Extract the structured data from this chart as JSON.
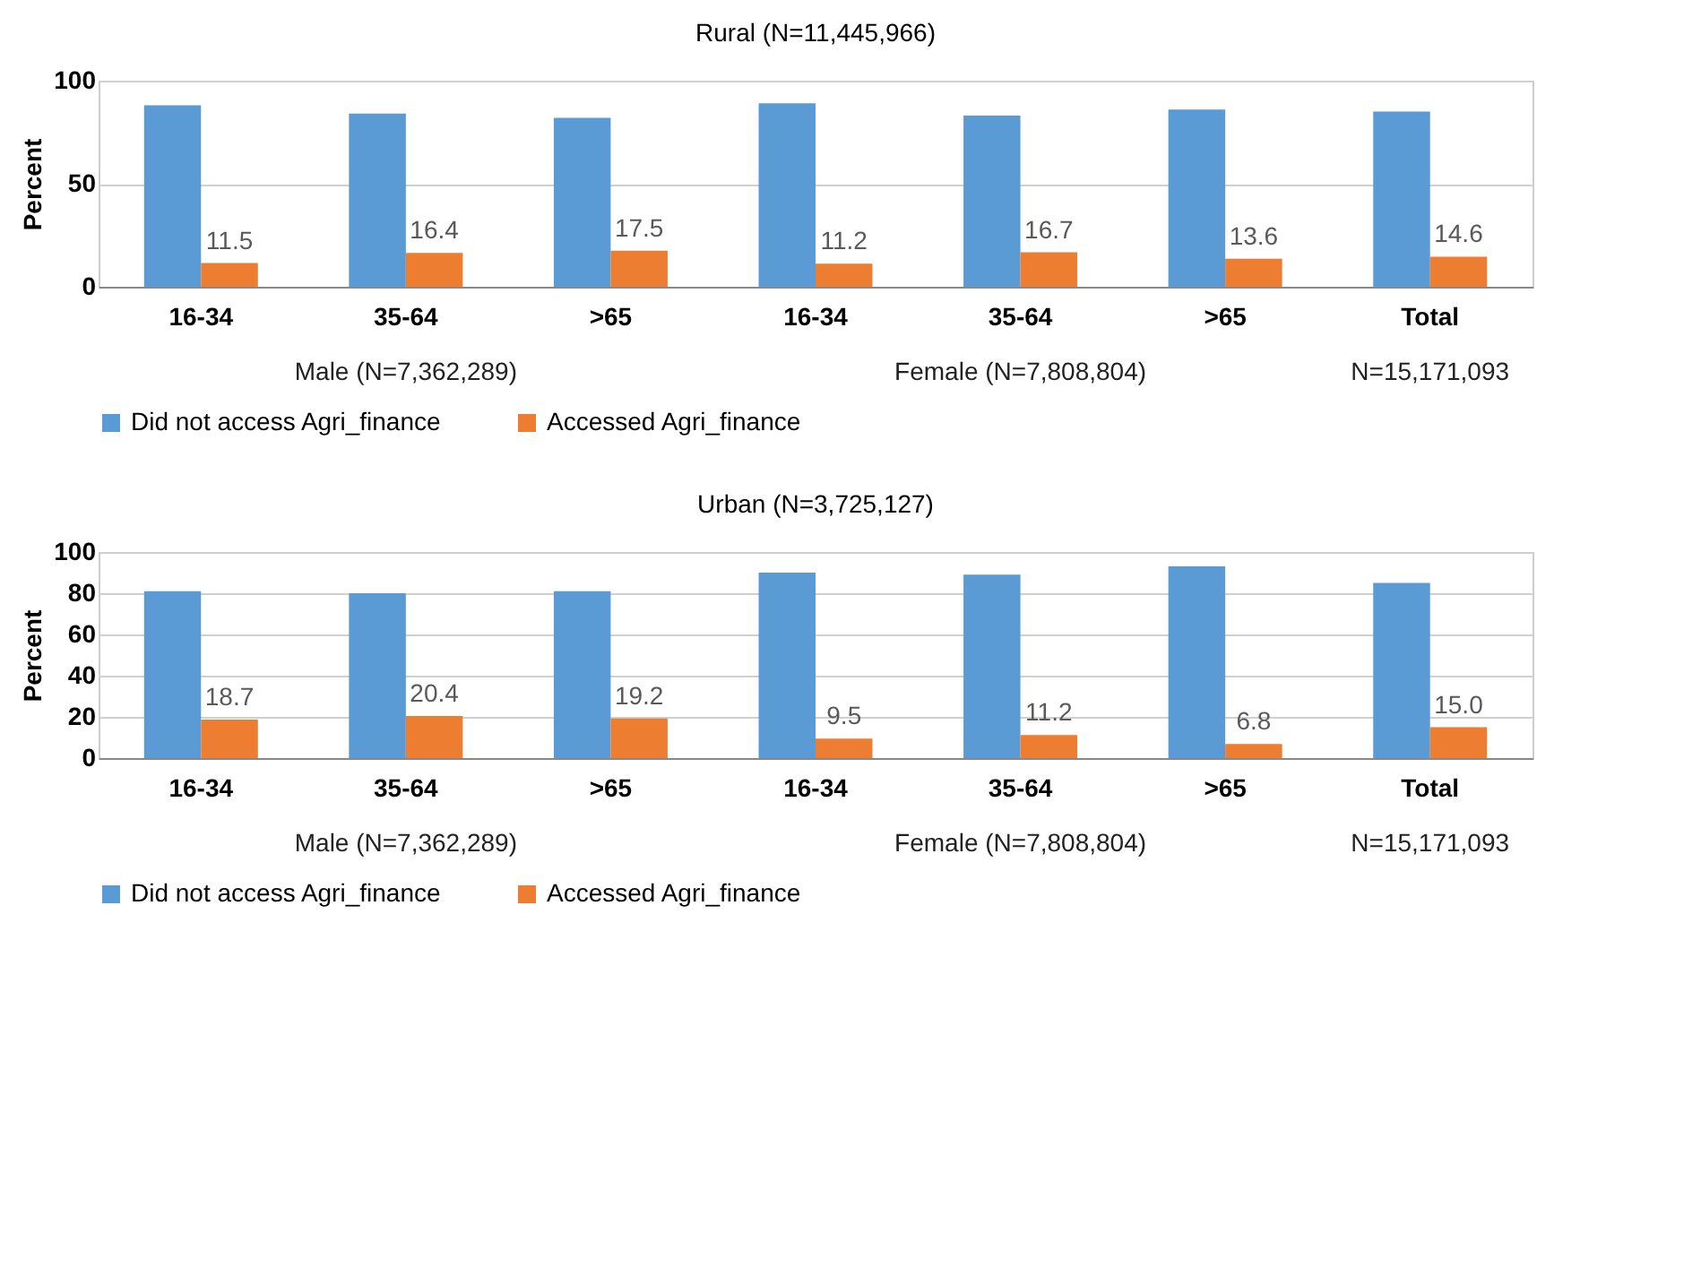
{
  "chart_data": [
    {
      "type": "bar",
      "title": "Rural (N=11,445,966)",
      "ylabel": "Percent",
      "categories": [
        "16-34",
        "35-64",
        ">65",
        "16-34",
        "35-64",
        ">65",
        "Total"
      ],
      "series": [
        {
          "name": "Did not access Agri_finance",
          "color": "#5b9bd5",
          "values": [
            88,
            84,
            82,
            89,
            83,
            86,
            85
          ]
        },
        {
          "name": "Accessed Agri_finance",
          "color": "#ed7d31",
          "values": [
            11.5,
            16.4,
            17.5,
            11.2,
            16.7,
            13.6,
            14.6
          ],
          "value_labels": [
            "11.5",
            "16.4",
            "17.5",
            "11.2",
            "16.7",
            "13.6",
            "14.6"
          ]
        }
      ],
      "ylim": [
        0,
        100
      ],
      "yticks": [
        0,
        50,
        100
      ],
      "grid": "y",
      "legend": "bottom",
      "annotations": [
        "Male (N=7,362,289)",
        "Female (N=7,808,804)",
        "N=15,171,093"
      ]
    },
    {
      "type": "bar",
      "title": "Urban (N=3,725,127)",
      "ylabel": "Percent",
      "categories": [
        "16-34",
        "35-64",
        ">65",
        "16-34",
        "35-64",
        ">65",
        "Total"
      ],
      "series": [
        {
          "name": "Did not access Agri_finance",
          "color": "#5b9bd5",
          "values": [
            81,
            80,
            81,
            90,
            89,
            93,
            85
          ]
        },
        {
          "name": "Accessed Agri_finance",
          "color": "#ed7d31",
          "values": [
            18.7,
            20.4,
            19.2,
            9.5,
            11.2,
            6.8,
            15.0
          ],
          "value_labels": [
            "18.7",
            "20.4",
            "19.2",
            "9.5",
            "11.2",
            "6.8",
            "15.0"
          ]
        }
      ],
      "ylim": [
        0,
        100
      ],
      "yticks": [
        0,
        20,
        40,
        60,
        80,
        100
      ],
      "grid": "y",
      "legend": "bottom",
      "annotations": [
        "Male (N=7,362,289)",
        "Female (N=7,808,804)",
        "N=15,171,093"
      ]
    }
  ]
}
